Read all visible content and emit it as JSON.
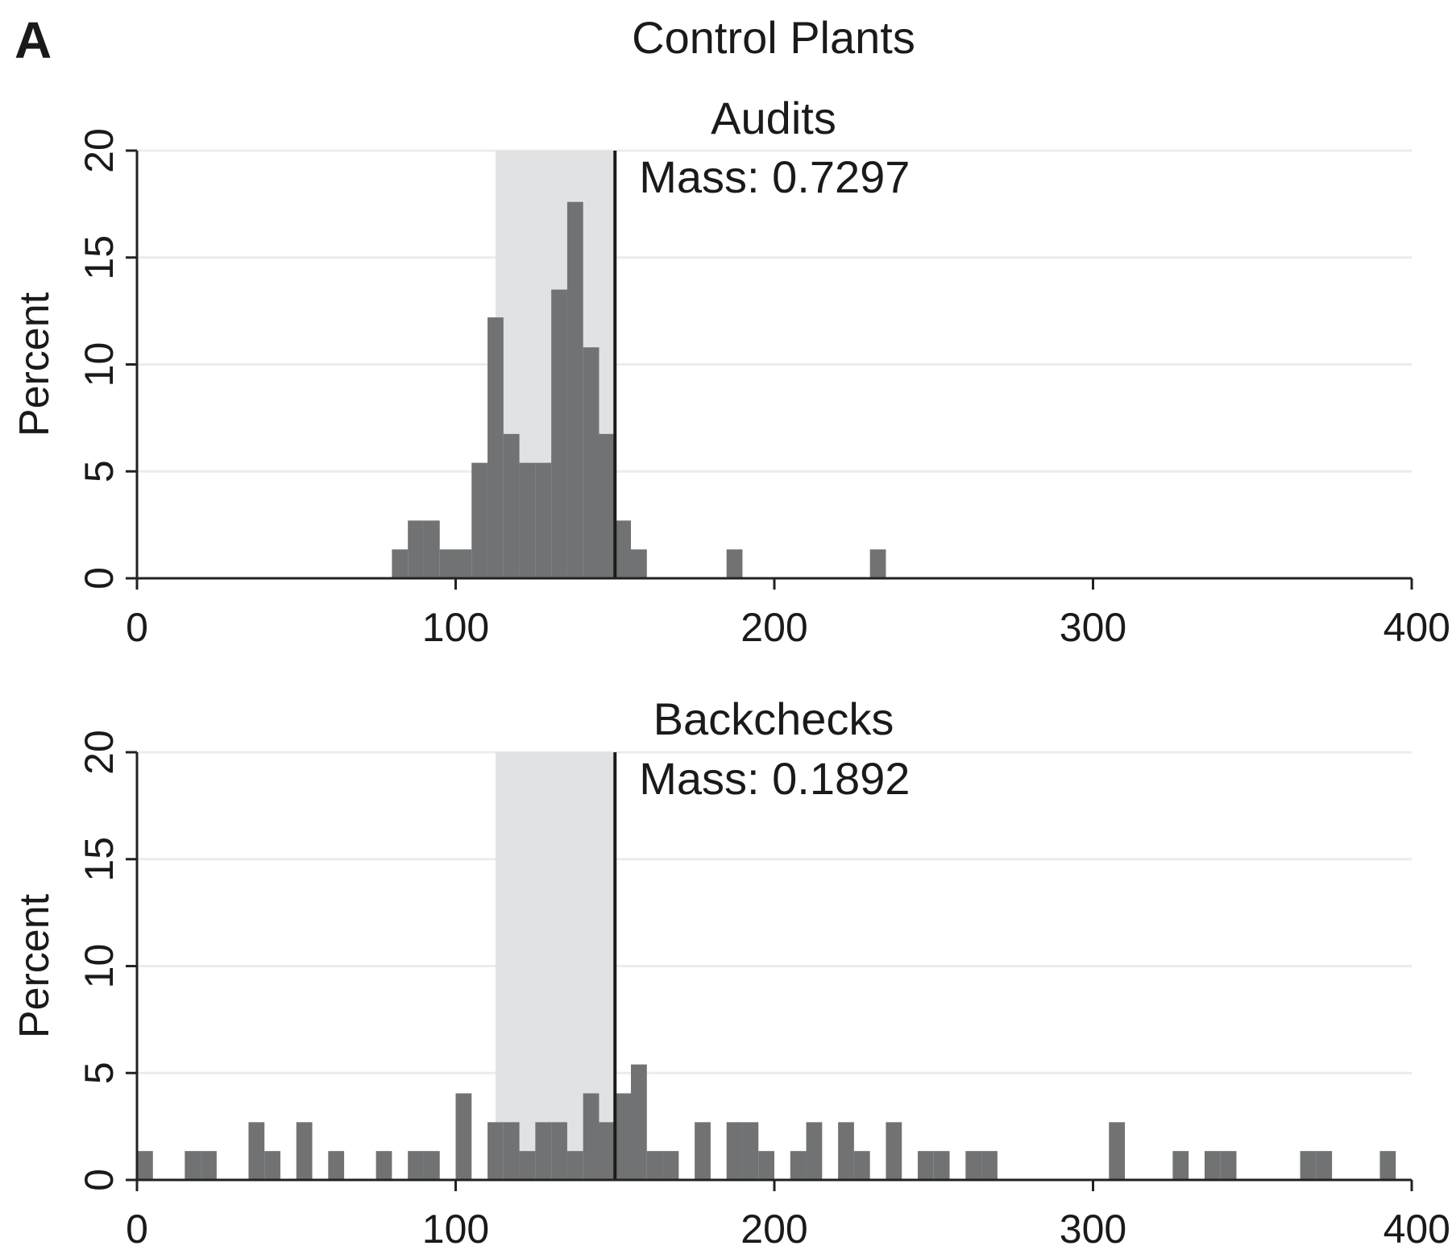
{
  "figure": {
    "panel_letter": "A",
    "title": "Control Plants"
  },
  "colors": {
    "bar": "#717273",
    "band": "#e1e2e4",
    "grid": "#ececec",
    "axis": "#222222",
    "cutoff": "#1a1a1a"
  },
  "chart_data": [
    {
      "type": "bar",
      "title": "Audits",
      "xlabel": "",
      "ylabel": "Percent",
      "xlim": [
        0,
        400
      ],
      "ylim": [
        0,
        20
      ],
      "xticks": [
        "0",
        "100",
        "200",
        "300",
        "400"
      ],
      "yticks": [
        "0",
        "5",
        "10",
        "15",
        "20"
      ],
      "grid": true,
      "bin_width": 5,
      "band": [
        112.5,
        150
      ],
      "cutoff": 150,
      "annotation": "Mass: 0.7297",
      "bins": [
        {
          "x": 80,
          "v": 1.35
        },
        {
          "x": 85,
          "v": 2.7
        },
        {
          "x": 90,
          "v": 2.7
        },
        {
          "x": 95,
          "v": 1.35
        },
        {
          "x": 100,
          "v": 1.35
        },
        {
          "x": 105,
          "v": 5.4
        },
        {
          "x": 110,
          "v": 12.2
        },
        {
          "x": 115,
          "v": 6.75
        },
        {
          "x": 120,
          "v": 5.4
        },
        {
          "x": 125,
          "v": 5.4
        },
        {
          "x": 130,
          "v": 13.5
        },
        {
          "x": 135,
          "v": 17.6
        },
        {
          "x": 140,
          "v": 10.8
        },
        {
          "x": 145,
          "v": 6.75
        },
        {
          "x": 150,
          "v": 2.7
        },
        {
          "x": 155,
          "v": 1.35
        },
        {
          "x": 185,
          "v": 1.35
        },
        {
          "x": 230,
          "v": 1.35
        }
      ]
    },
    {
      "type": "bar",
      "title": "Backchecks",
      "xlabel": "",
      "ylabel": "Percent",
      "xlim": [
        0,
        400
      ],
      "ylim": [
        0,
        20
      ],
      "xticks": [
        "0",
        "100",
        "200",
        "300",
        "400"
      ],
      "yticks": [
        "0",
        "5",
        "10",
        "15",
        "20"
      ],
      "grid": true,
      "bin_width": 5,
      "band": [
        112.5,
        150
      ],
      "cutoff": 150,
      "annotation": "Mass: 0.1892",
      "bins": [
        {
          "x": 0,
          "v": 1.35
        },
        {
          "x": 15,
          "v": 1.35
        },
        {
          "x": 20,
          "v": 1.35
        },
        {
          "x": 35,
          "v": 2.7
        },
        {
          "x": 40,
          "v": 1.35
        },
        {
          "x": 50,
          "v": 2.7
        },
        {
          "x": 60,
          "v": 1.35
        },
        {
          "x": 75,
          "v": 1.35
        },
        {
          "x": 85,
          "v": 1.35
        },
        {
          "x": 90,
          "v": 1.35
        },
        {
          "x": 100,
          "v": 4.05
        },
        {
          "x": 110,
          "v": 2.7
        },
        {
          "x": 115,
          "v": 2.7
        },
        {
          "x": 120,
          "v": 1.35
        },
        {
          "x": 125,
          "v": 2.7
        },
        {
          "x": 130,
          "v": 2.7
        },
        {
          "x": 135,
          "v": 1.35
        },
        {
          "x": 140,
          "v": 4.05
        },
        {
          "x": 145,
          "v": 2.7
        },
        {
          "x": 150,
          "v": 4.05
        },
        {
          "x": 155,
          "v": 5.4
        },
        {
          "x": 160,
          "v": 1.35
        },
        {
          "x": 165,
          "v": 1.35
        },
        {
          "x": 175,
          "v": 2.7
        },
        {
          "x": 185,
          "v": 2.7
        },
        {
          "x": 190,
          "v": 2.7
        },
        {
          "x": 195,
          "v": 1.35
        },
        {
          "x": 205,
          "v": 1.35
        },
        {
          "x": 210,
          "v": 2.7
        },
        {
          "x": 220,
          "v": 2.7
        },
        {
          "x": 225,
          "v": 1.35
        },
        {
          "x": 235,
          "v": 2.7
        },
        {
          "x": 245,
          "v": 1.35
        },
        {
          "x": 250,
          "v": 1.35
        },
        {
          "x": 260,
          "v": 1.35
        },
        {
          "x": 265,
          "v": 1.35
        },
        {
          "x": 305,
          "v": 2.7
        },
        {
          "x": 325,
          "v": 1.35
        },
        {
          "x": 335,
          "v": 1.35
        },
        {
          "x": 340,
          "v": 1.35
        },
        {
          "x": 365,
          "v": 1.35
        },
        {
          "x": 370,
          "v": 1.35
        },
        {
          "x": 390,
          "v": 1.35
        }
      ]
    }
  ]
}
